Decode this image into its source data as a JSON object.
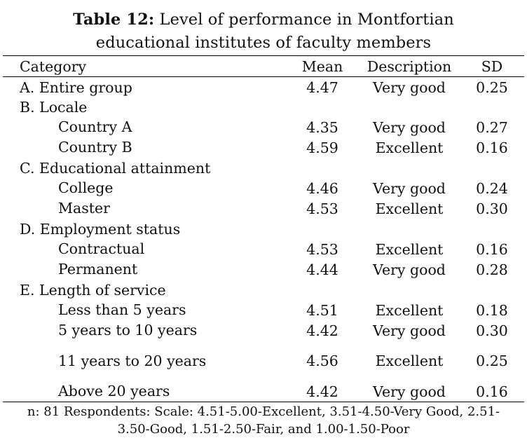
{
  "caption": {
    "label": "Table 12:",
    "line1": "Level of performance in Montfortian",
    "line2": "educational institutes of faculty members"
  },
  "headers": {
    "category": "Category",
    "mean": "Mean",
    "description": "Description",
    "sd": "SD"
  },
  "rows": [
    {
      "category": "A. Entire group",
      "mean": "4.47",
      "description": "Very good",
      "sd": "0.25"
    },
    {
      "category": "B. Locale",
      "mean": "",
      "description": "",
      "sd": ""
    },
    {
      "category": "Country A",
      "mean": "4.35",
      "description": "Very good",
      "sd": "0.27"
    },
    {
      "category": "Country B",
      "mean": "4.59",
      "description": "Excellent",
      "sd": "0.16"
    },
    {
      "category": "C. Educational attainment",
      "mean": "",
      "description": "",
      "sd": ""
    },
    {
      "category": "College",
      "mean": "4.46",
      "description": "Very good",
      "sd": "0.24"
    },
    {
      "category": "Master",
      "mean": "4.53",
      "description": "Excellent",
      "sd": "0.30"
    },
    {
      "category": "D. Employment status",
      "mean": "",
      "description": "",
      "sd": ""
    },
    {
      "category": "Contractual",
      "mean": "4.53",
      "description": "Excellent",
      "sd": "0.16"
    },
    {
      "category": "Permanent",
      "mean": "4.44",
      "description": "Very good",
      "sd": "0.28"
    },
    {
      "category": "E. Length of service",
      "mean": "",
      "description": "",
      "sd": ""
    },
    {
      "category": "Less than 5 years",
      "mean": "4.51",
      "description": "Excellent",
      "sd": "0.18"
    },
    {
      "category": "5 years to 10 years",
      "mean": "4.42",
      "description": "Very good",
      "sd": "0.30"
    },
    {
      "category": "11 years to 20 years",
      "mean": "4.56",
      "description": "Excellent",
      "sd": "0.25"
    },
    {
      "category": "Above 20 years",
      "mean": "4.42",
      "description": "Very good",
      "sd": "0.16"
    }
  ],
  "note": {
    "line1": "n: 81 Respondents: Scale: 4.51-5.00-Excellent, 3.51-4.50-Very Good, 2.51-",
    "line2": "3.50-Good, 1.51-2.50-Fair, and 1.00-1.50-Poor"
  }
}
